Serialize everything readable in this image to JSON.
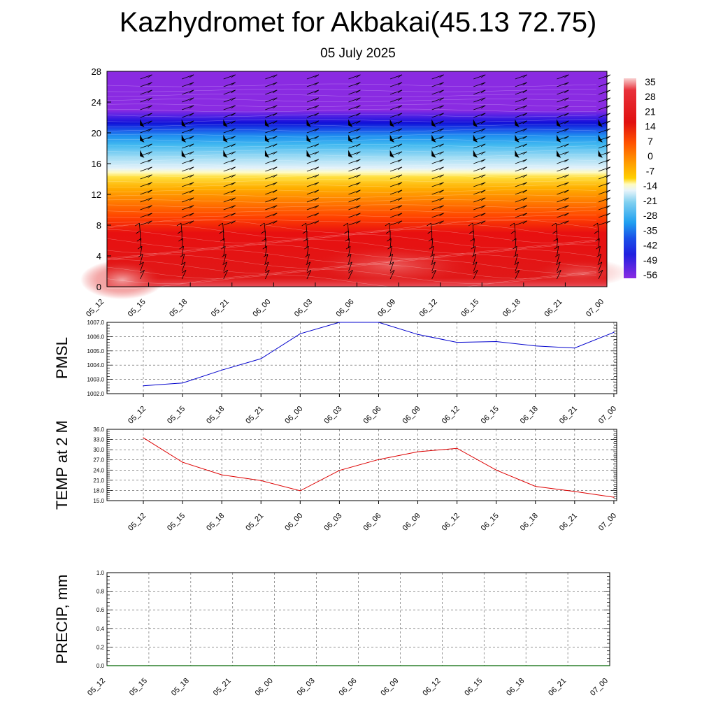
{
  "title": "Kazhydromet for Akbakai(45.13 72.75)",
  "subtitle": "05 July 2025",
  "colors": {
    "pmsl_line": "#0000cc",
    "temp_line": "#dd0000",
    "precip_line": "#006600",
    "colorbar": [
      "#f6c0c0",
      "#e01010",
      "#ff5a00",
      "#ff9a00",
      "#ffd000",
      "#fff9b0",
      "#d8eef8",
      "#80d0f0",
      "#20a0f0",
      "#1a50e8",
      "#2020e0",
      "#8a2be2"
    ]
  },
  "chart_data": [
    {
      "type": "heatmap",
      "title": "",
      "ylabel": "",
      "ylim": [
        0,
        28
      ],
      "yticks": [
        "0",
        "4",
        "8",
        "12",
        "16",
        "20",
        "24",
        "28"
      ],
      "x": [
        "05_12",
        "05_15",
        "05_18",
        "05_21",
        "06_00",
        "06_03",
        "06_06",
        "06_09",
        "06_12",
        "06_15",
        "06_18",
        "06_21",
        "07_00"
      ],
      "colorbar_labels": [
        "35",
        "28",
        "21",
        "14",
        "7",
        "0",
        "-7",
        "-14",
        "-21",
        "-28",
        "-35",
        "-42",
        "-49",
        "-56"
      ],
      "legend": "right"
    },
    {
      "type": "line",
      "ylabel": "PMSL",
      "ylim": [
        1002.0,
        1007.0
      ],
      "yticks": [
        "1002.0",
        "1003.0",
        "1004.0",
        "1005.0",
        "1006.0",
        "1007.0"
      ],
      "x": [
        "05_12",
        "05_15",
        "05_18",
        "05_21",
        "06_00",
        "06_03",
        "06_06",
        "06_09",
        "06_12",
        "06_15",
        "06_18",
        "06_21",
        "07_00"
      ],
      "values": [
        1002.55,
        1002.75,
        1003.65,
        1004.45,
        1006.2,
        1007.0,
        1007.0,
        1006.15,
        1005.6,
        1005.65,
        1005.35,
        1005.2,
        1006.3
      ],
      "grid": true
    },
    {
      "type": "line",
      "ylabel": "TEMP at 2 M",
      "ylim": [
        15.0,
        36.0
      ],
      "yticks": [
        "15.0",
        "18.0",
        "21.0",
        "24.0",
        "27.0",
        "30.0",
        "33.0",
        "36.0"
      ],
      "x": [
        "05_12",
        "05_15",
        "05_18",
        "05_21",
        "06_00",
        "06_03",
        "06_06",
        "06_09",
        "06_12",
        "06_15",
        "06_18",
        "06_21",
        "07_00"
      ],
      "values": [
        33.5,
        26.3,
        22.6,
        20.9,
        17.9,
        23.9,
        27.1,
        29.4,
        30.4,
        24.0,
        19.2,
        17.7,
        16.0
      ],
      "grid": true
    },
    {
      "type": "line",
      "ylabel": "PRECIP, mm",
      "ylim": [
        0.0,
        1.0
      ],
      "yticks": [
        "0.0",
        "0.2",
        "0.4",
        "0.6",
        "0.8",
        "1.0"
      ],
      "x": [
        "05_12",
        "05_15",
        "05_18",
        "05_21",
        "06_00",
        "06_03",
        "06_06",
        "06_09",
        "06_12",
        "06_15",
        "06_18",
        "06_21",
        "07_00"
      ],
      "values": [
        0,
        0,
        0,
        0,
        0,
        0,
        0,
        0,
        0,
        0,
        0,
        0,
        0
      ],
      "grid": true
    }
  ]
}
